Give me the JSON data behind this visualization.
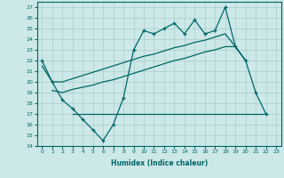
{
  "title": "",
  "xlabel": "Humidex (Indice chaleur)",
  "background_color": "#cce8e8",
  "line_color": "#006666",
  "grid_color": "#aacccc",
  "xlim": [
    -0.5,
    23.5
  ],
  "ylim": [
    14,
    27.5
  ],
  "yticks": [
    14,
    15,
    16,
    17,
    18,
    19,
    20,
    21,
    22,
    23,
    24,
    25,
    26,
    27
  ],
  "xticks": [
    0,
    1,
    2,
    3,
    4,
    5,
    6,
    7,
    8,
    9,
    10,
    11,
    12,
    13,
    14,
    15,
    16,
    17,
    18,
    19,
    20,
    21,
    22,
    23
  ],
  "series_main_x": [
    0,
    1,
    2,
    3,
    4,
    5,
    6,
    7,
    8,
    9,
    10,
    11,
    12,
    13,
    14,
    15,
    16,
    17,
    18,
    19,
    20,
    21,
    22
  ],
  "series_main_y": [
    22,
    20,
    18.3,
    17.5,
    16.5,
    15.5,
    14.5,
    16.0,
    18.5,
    23.0,
    24.8,
    24.5,
    25.0,
    25.5,
    24.5,
    25.8,
    24.5,
    24.8,
    27.0,
    23.3,
    22.0,
    19.0,
    17.0
  ],
  "series_upper_x": [
    0,
    1,
    2,
    3,
    4,
    5,
    6,
    7,
    8,
    9,
    10,
    11,
    12,
    13,
    14,
    15,
    16,
    17,
    18,
    19,
    20
  ],
  "series_upper_y": [
    21.5,
    20.0,
    20.0,
    20.3,
    20.6,
    20.9,
    21.2,
    21.5,
    21.8,
    22.1,
    22.4,
    22.6,
    22.9,
    23.2,
    23.4,
    23.7,
    23.9,
    24.2,
    24.5,
    23.3,
    22.0
  ],
  "series_lower_x": [
    1,
    2,
    3,
    4,
    5,
    6,
    7,
    8,
    9,
    10,
    11,
    12,
    13,
    14,
    15,
    16,
    17,
    18,
    19,
    20
  ],
  "series_lower_y": [
    19.2,
    19.0,
    19.3,
    19.5,
    19.7,
    20.0,
    20.2,
    20.5,
    20.8,
    21.1,
    21.4,
    21.7,
    22.0,
    22.2,
    22.5,
    22.8,
    23.0,
    23.3,
    23.3,
    22.0
  ],
  "series_flat_x": [
    3,
    4,
    5,
    6,
    7,
    8,
    9,
    10,
    11,
    12,
    13,
    14,
    15,
    16,
    17,
    18,
    19,
    20,
    21,
    22
  ],
  "series_flat_y": [
    17,
    17,
    17,
    17,
    17,
    17,
    17,
    17,
    17,
    17,
    17,
    17,
    17,
    17,
    17,
    17,
    17,
    17,
    17,
    17
  ]
}
